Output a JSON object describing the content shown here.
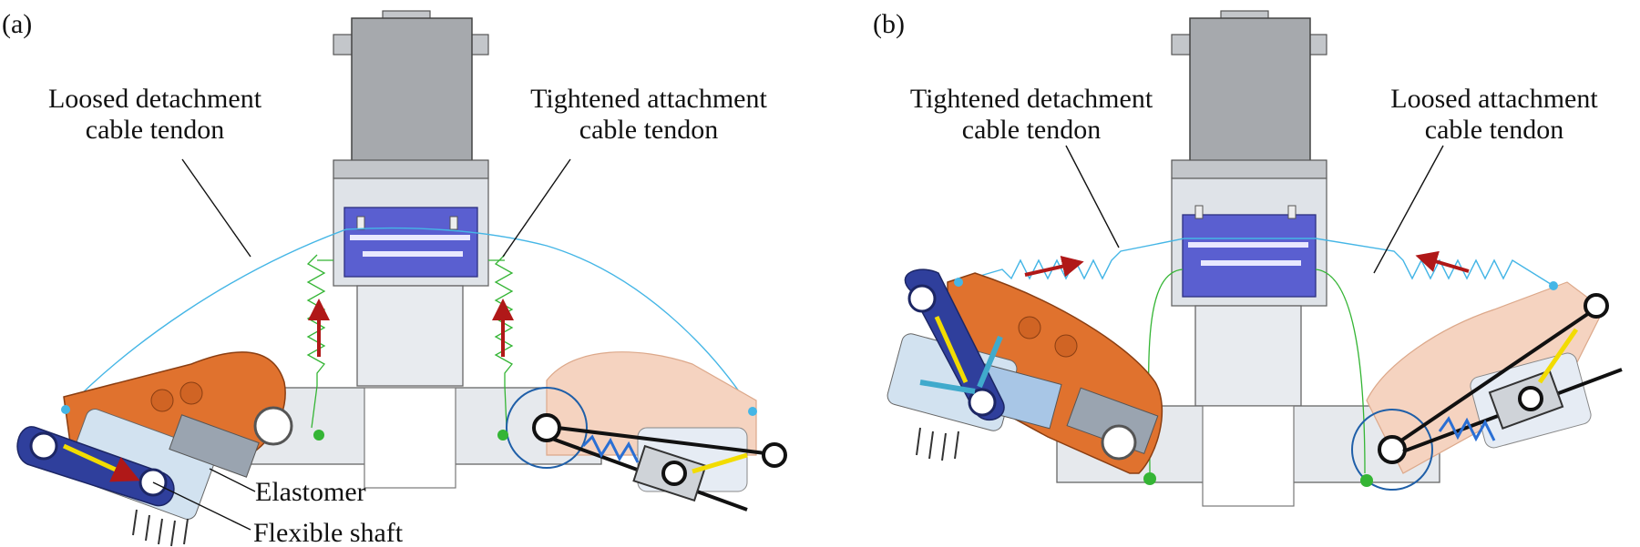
{
  "panels": [
    {
      "label": "(a)",
      "callouts": {
        "left_line1": "Loosed detachment",
        "left_line2": "cable tendon",
        "right_line1": "Tightened attachment",
        "right_line2": "cable tendon",
        "elastomer": "Elastomer",
        "flexible_shaft": "Flexible shaft"
      }
    },
    {
      "label": "(b)",
      "callouts": {
        "left_line1": "Tightened detachment",
        "left_line2": "cable tendon",
        "right_line1": "Loosed attachment",
        "right_line2": "cable tendon"
      }
    }
  ],
  "colors": {
    "motor_gray": "#a6a9ad",
    "housing_gray": "#dfe3e8",
    "slider_blue": "#5a5fd0",
    "link_orange": "#e0722e",
    "link_blue": "#2f3f9c",
    "cable_cyan": "#45b6e6",
    "spring_green": "#35b535",
    "arrow_red": "#b01818",
    "arrow_yellow": "#f2dc00",
    "arrow_teal": "#40aacc"
  }
}
